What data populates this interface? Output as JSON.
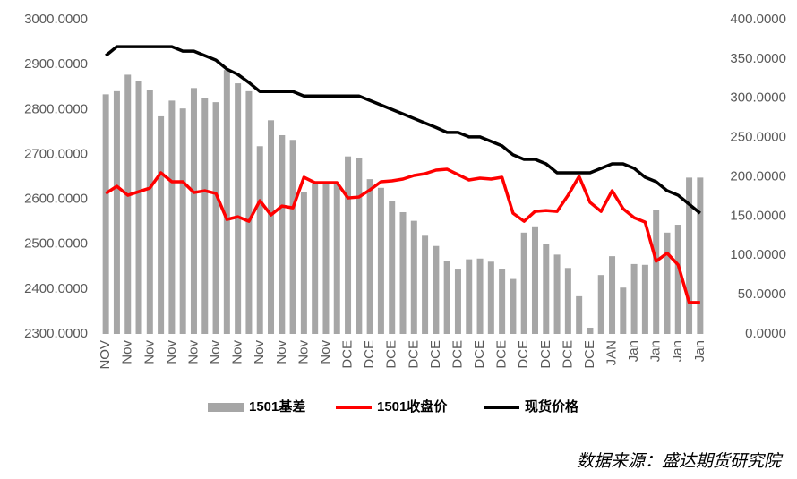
{
  "chart_data": {
    "type": "bar_line_dual",
    "categories": [
      "NOV",
      null,
      "Nov",
      null,
      "Nov",
      null,
      "Nov",
      null,
      "Nov",
      null,
      "Nov",
      null,
      "Nov",
      null,
      "Nov",
      null,
      "Nov",
      null,
      "Nov",
      null,
      "Nov",
      null,
      "DCE",
      null,
      "DCE",
      null,
      "DCE",
      null,
      "DCE",
      null,
      "DCE",
      null,
      "DCE",
      null,
      "DCE",
      null,
      "DCE",
      null,
      "DCE",
      null,
      "DCE",
      null,
      "DCE",
      null,
      "DCE",
      null,
      "JAN",
      null,
      "Jan",
      null,
      "Jan",
      null,
      "Jan",
      null,
      "Jan"
    ],
    "series": [
      {
        "name": "1501基差",
        "color": "#a6a6a6",
        "kind": "bar",
        "axis": "y2",
        "values": [
          305,
          309,
          330,
          322,
          311,
          277,
          297,
          287,
          313,
          300,
          295,
          336,
          319,
          309,
          239,
          272,
          253,
          247,
          181,
          191,
          191,
          191,
          226,
          224,
          197,
          186,
          169,
          155,
          144,
          125,
          112,
          93,
          82,
          95,
          96,
          92,
          83,
          70,
          129,
          137,
          114,
          101,
          84,
          48,
          8,
          75,
          99,
          59,
          89,
          88,
          158,
          129,
          139,
          199,
          199
        ]
      },
      {
        "name": "1501收盘价",
        "color": "#ff0000",
        "kind": "line",
        "axis": "y",
        "values": [
          2613,
          2629,
          2609,
          2617,
          2625,
          2659,
          2639,
          2639,
          2615,
          2619,
          2613,
          2555,
          2561,
          2551,
          2597,
          2565,
          2585,
          2581,
          2649,
          2637,
          2637,
          2637,
          2603,
          2605,
          2621,
          2639,
          2641,
          2645,
          2653,
          2657,
          2665,
          2667,
          2655,
          2643,
          2647,
          2645,
          2649,
          2569,
          2551,
          2573,
          2575,
          2573,
          2609,
          2651,
          2593,
          2573,
          2619,
          2579,
          2559,
          2549,
          2462,
          2480,
          2454,
          2370,
          2370
        ]
      },
      {
        "name": "现货价格",
        "color": "#000000",
        "kind": "line",
        "axis": "y",
        "values": [
          2920,
          2940,
          2940,
          2940,
          2940,
          2940,
          2940,
          2930,
          2930,
          2920,
          2910,
          2890,
          2878,
          2860,
          2840,
          2840,
          2840,
          2840,
          2830,
          2830,
          2830,
          2830,
          2830,
          2830,
          2820,
          2810,
          2800,
          2790,
          2780,
          2770,
          2760,
          2749,
          2749,
          2739,
          2739,
          2729,
          2719,
          2699,
          2689,
          2689,
          2679,
          2659,
          2659,
          2659,
          2659,
          2669,
          2679,
          2679,
          2669,
          2649,
          2639,
          2619,
          2609,
          2589,
          2569
        ]
      }
    ],
    "ylim": [
      2300,
      3000
    ],
    "yticks": [
      {
        "value": 2300,
        "label": "2300.0000"
      },
      {
        "value": 2400,
        "label": "2400.0000"
      },
      {
        "value": 2500,
        "label": "2500.0000"
      },
      {
        "value": 2600,
        "label": "2600.0000"
      },
      {
        "value": 2700,
        "label": "2700.0000"
      },
      {
        "value": 2800,
        "label": "2800.0000"
      },
      {
        "value": 2900,
        "label": "2900.0000"
      },
      {
        "value": 3000,
        "label": "3000.0000"
      }
    ],
    "y2lim": [
      0,
      400
    ],
    "y2ticks": [
      {
        "value": 0,
        "label": "0.0000"
      },
      {
        "value": 50,
        "label": "50.0000"
      },
      {
        "value": 100,
        "label": "100.0000"
      },
      {
        "value": 150,
        "label": "150.0000"
      },
      {
        "value": 200,
        "label": "200.0000"
      },
      {
        "value": 250,
        "label": "250.0000"
      },
      {
        "value": 300,
        "label": "300.0000"
      },
      {
        "value": 350,
        "label": "350.0000"
      },
      {
        "value": 400,
        "label": "400.0000"
      }
    ],
    "legend": "bottom",
    "source": "数据来源：盛达期货研究院"
  }
}
